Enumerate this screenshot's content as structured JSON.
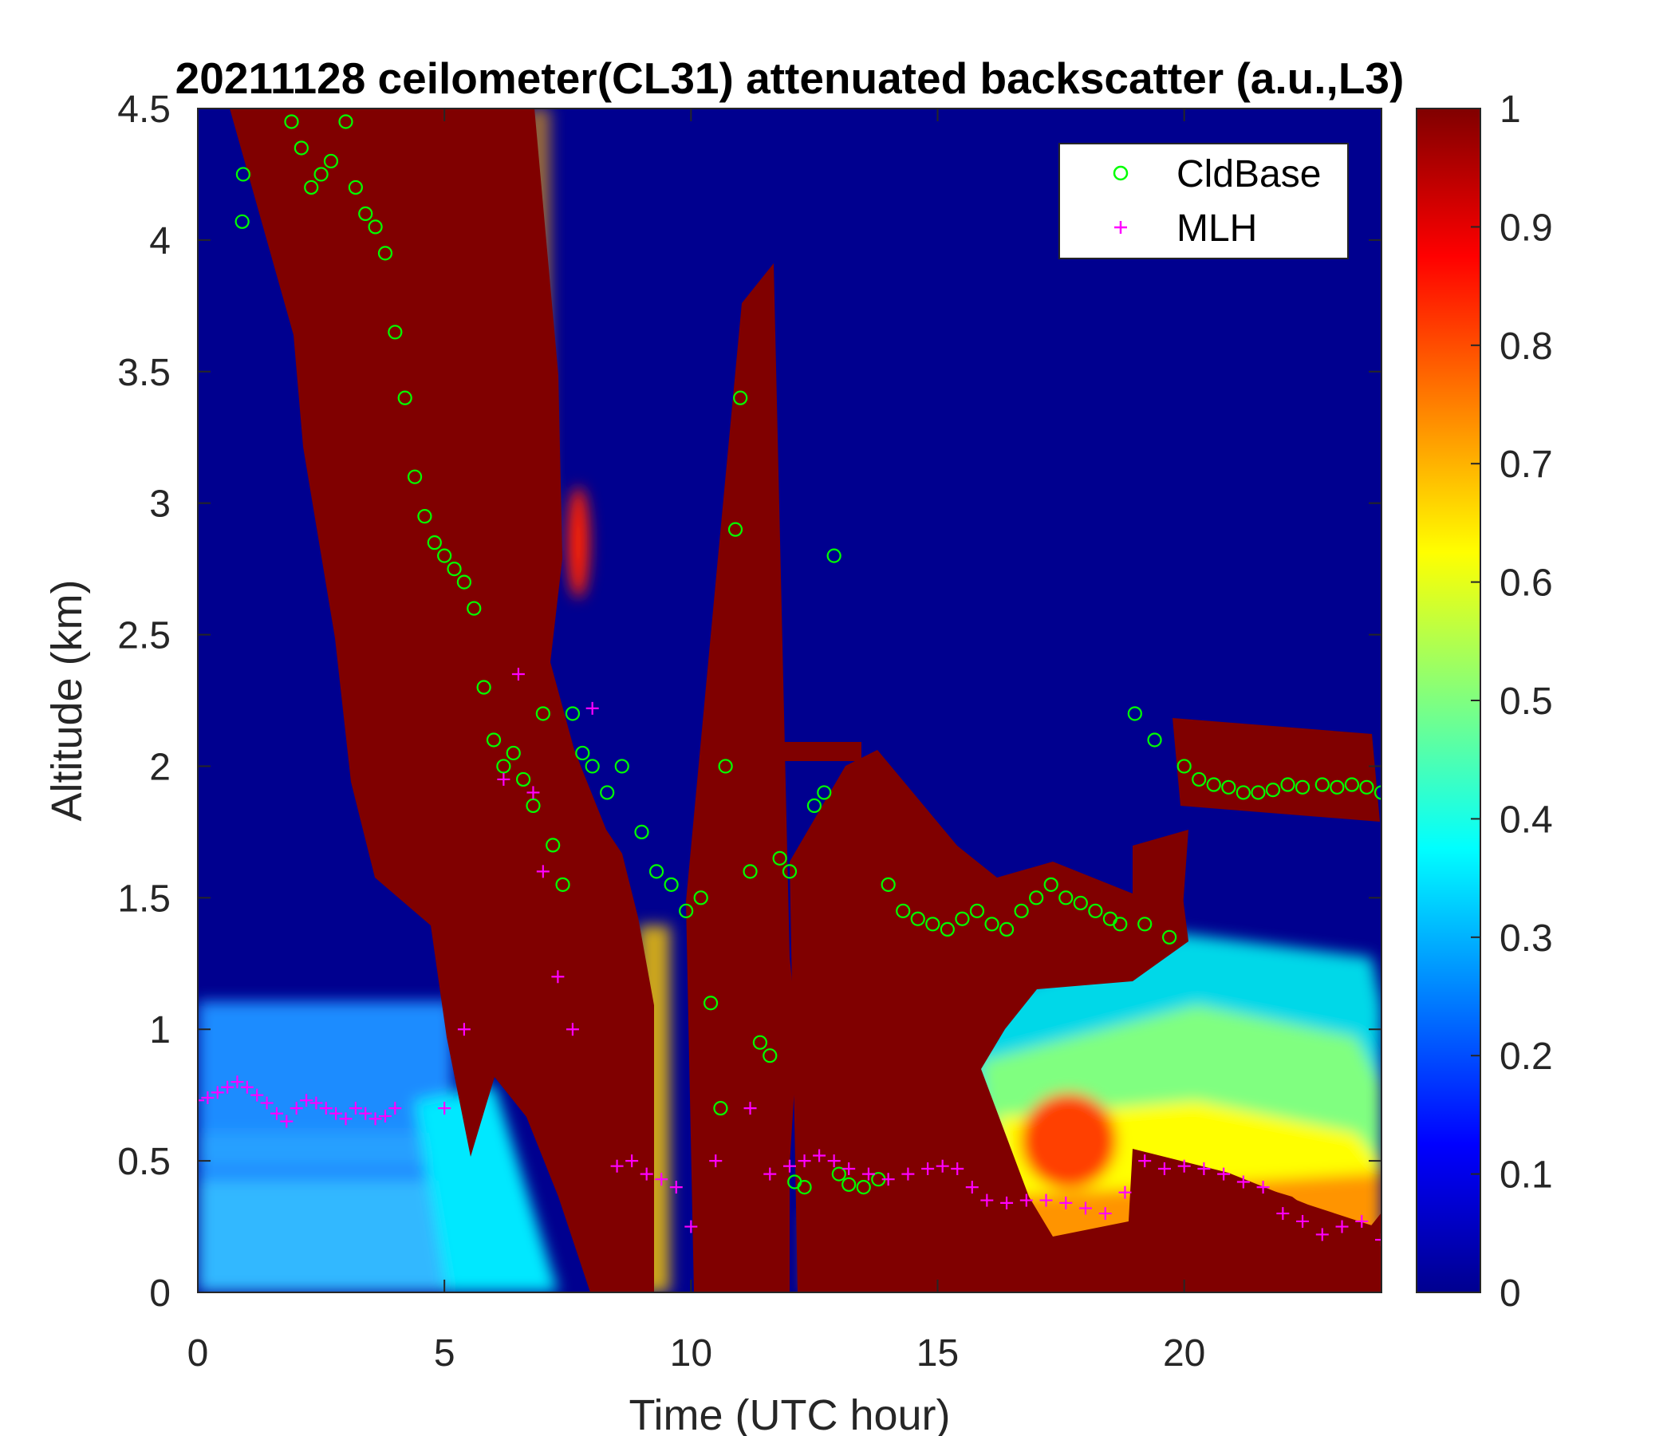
{
  "chart_data": {
    "type": "heatmap",
    "title": "20211128 ceilometer(CL31) attenuated backscatter (a.u.,L3)",
    "xlabel": "Time (UTC hour)",
    "ylabel": "Altitude (km)",
    "xlim": [
      0,
      24
    ],
    "ylim": [
      0,
      4.5
    ],
    "x_ticks": [
      "0",
      "5",
      "10",
      "15",
      "20"
    ],
    "x_tick_values": [
      0,
      5,
      10,
      15,
      20
    ],
    "y_ticks": [
      "0",
      "0.5",
      "1",
      "1.5",
      "2",
      "2.5",
      "3",
      "3.5",
      "4",
      "4.5"
    ],
    "y_tick_values": [
      0,
      0.5,
      1,
      1.5,
      2,
      2.5,
      3,
      3.5,
      4,
      4.5
    ],
    "colorbar": {
      "colormap": "jet",
      "range": [
        0,
        1
      ],
      "ticks": [
        "0",
        "0.1",
        "0.2",
        "0.3",
        "0.4",
        "0.5",
        "0.6",
        "0.7",
        "0.8",
        "0.9",
        "1"
      ],
      "tick_values": [
        0,
        0.1,
        0.2,
        0.3,
        0.4,
        0.5,
        0.6,
        0.7,
        0.8,
        0.9,
        1
      ]
    },
    "legend": {
      "position": "top-right"
    },
    "series": [
      {
        "name": "CldBase",
        "marker": "circle",
        "color": "#00ff00",
        "x": [
          0.9,
          0.92,
          1.9,
          2.1,
          2.3,
          2.5,
          2.7,
          3.0,
          3.2,
          3.4,
          3.6,
          3.8,
          4.0,
          4.2,
          4.4,
          4.6,
          4.8,
          5.0,
          5.2,
          5.4,
          5.6,
          5.8,
          6.0,
          6.2,
          6.4,
          6.6,
          6.8,
          7.0,
          7.2,
          7.4,
          7.6,
          7.8,
          8.0,
          8.3,
          8.6,
          9.0,
          9.3,
          9.6,
          9.9,
          10.2,
          10.4,
          10.6,
          10.7,
          10.9,
          11.0,
          11.2,
          11.4,
          11.6,
          11.8,
          12.0,
          12.1,
          12.3,
          12.5,
          12.7,
          12.9,
          13.0,
          13.2,
          13.5,
          13.8,
          14.0,
          14.3,
          14.6,
          14.9,
          15.2,
          15.5,
          15.8,
          16.1,
          16.4,
          16.7,
          17.0,
          17.3,
          17.6,
          17.9,
          18.2,
          18.5,
          18.7,
          19.0,
          19.2,
          19.4,
          19.7,
          20.0,
          20.3,
          20.6,
          20.9,
          21.2,
          21.5,
          21.8,
          22.1,
          22.4,
          22.8,
          23.1,
          23.4,
          23.7,
          24.0
        ],
        "y": [
          4.07,
          4.25,
          4.45,
          4.35,
          4.2,
          4.25,
          4.3,
          4.45,
          4.2,
          4.1,
          4.05,
          3.95,
          3.65,
          3.4,
          3.1,
          2.95,
          2.85,
          2.8,
          2.75,
          2.7,
          2.6,
          2.3,
          2.1,
          2.0,
          2.05,
          1.95,
          1.85,
          2.2,
          1.7,
          1.55,
          2.2,
          2.05,
          2.0,
          1.9,
          2.0,
          1.75,
          1.6,
          1.55,
          1.45,
          1.5,
          1.1,
          0.7,
          2.0,
          2.9,
          3.4,
          1.6,
          0.95,
          0.9,
          1.65,
          1.6,
          0.42,
          0.4,
          1.85,
          1.9,
          2.8,
          0.45,
          0.41,
          0.4,
          0.43,
          1.55,
          1.45,
          1.42,
          1.4,
          1.38,
          1.42,
          1.45,
          1.4,
          1.38,
          1.45,
          1.5,
          1.55,
          1.5,
          1.48,
          1.45,
          1.42,
          1.4,
          2.2,
          1.4,
          2.1,
          1.35,
          2.0,
          1.95,
          1.93,
          1.92,
          1.9,
          1.9,
          1.91,
          1.93,
          1.92,
          1.93,
          1.92,
          1.93,
          1.92,
          1.9
        ]
      },
      {
        "name": "MLH",
        "marker": "plus",
        "color": "#ff00ff",
        "x": [
          0.0,
          0.2,
          0.4,
          0.6,
          0.8,
          1.0,
          1.2,
          1.4,
          1.6,
          1.8,
          2.0,
          2.2,
          2.4,
          2.6,
          2.8,
          3.0,
          3.2,
          3.4,
          3.6,
          3.8,
          4.0,
          5.0,
          5.4,
          6.2,
          6.5,
          6.8,
          7.0,
          7.3,
          7.6,
          8.0,
          8.5,
          8.8,
          9.1,
          9.4,
          9.7,
          10.0,
          10.5,
          11.2,
          11.6,
          12.0,
          12.3,
          12.6,
          12.9,
          13.2,
          13.6,
          14.0,
          14.4,
          14.8,
          15.1,
          15.4,
          15.7,
          16.0,
          16.4,
          16.8,
          17.2,
          17.6,
          18.0,
          18.4,
          18.8,
          19.2,
          19.6,
          20.0,
          20.4,
          20.8,
          21.2,
          21.6,
          22.0,
          22.4,
          22.8,
          23.2,
          23.6,
          24.0
        ],
        "y": [
          0.73,
          0.74,
          0.76,
          0.78,
          0.8,
          0.78,
          0.75,
          0.72,
          0.68,
          0.65,
          0.7,
          0.73,
          0.72,
          0.7,
          0.68,
          0.66,
          0.7,
          0.68,
          0.66,
          0.67,
          0.7,
          0.7,
          1.0,
          1.95,
          2.35,
          1.9,
          1.6,
          1.2,
          1.0,
          2.22,
          0.48,
          0.5,
          0.45,
          0.43,
          0.4,
          0.25,
          0.5,
          0.7,
          0.45,
          0.48,
          0.5,
          0.52,
          0.5,
          0.47,
          0.45,
          0.43,
          0.45,
          0.47,
          0.48,
          0.47,
          0.4,
          0.35,
          0.34,
          0.35,
          0.35,
          0.34,
          0.32,
          0.3,
          0.38,
          0.5,
          0.47,
          0.48,
          0.47,
          0.45,
          0.42,
          0.4,
          0.3,
          0.27,
          0.22,
          0.25,
          0.27,
          0.2
        ]
      }
    ]
  }
}
